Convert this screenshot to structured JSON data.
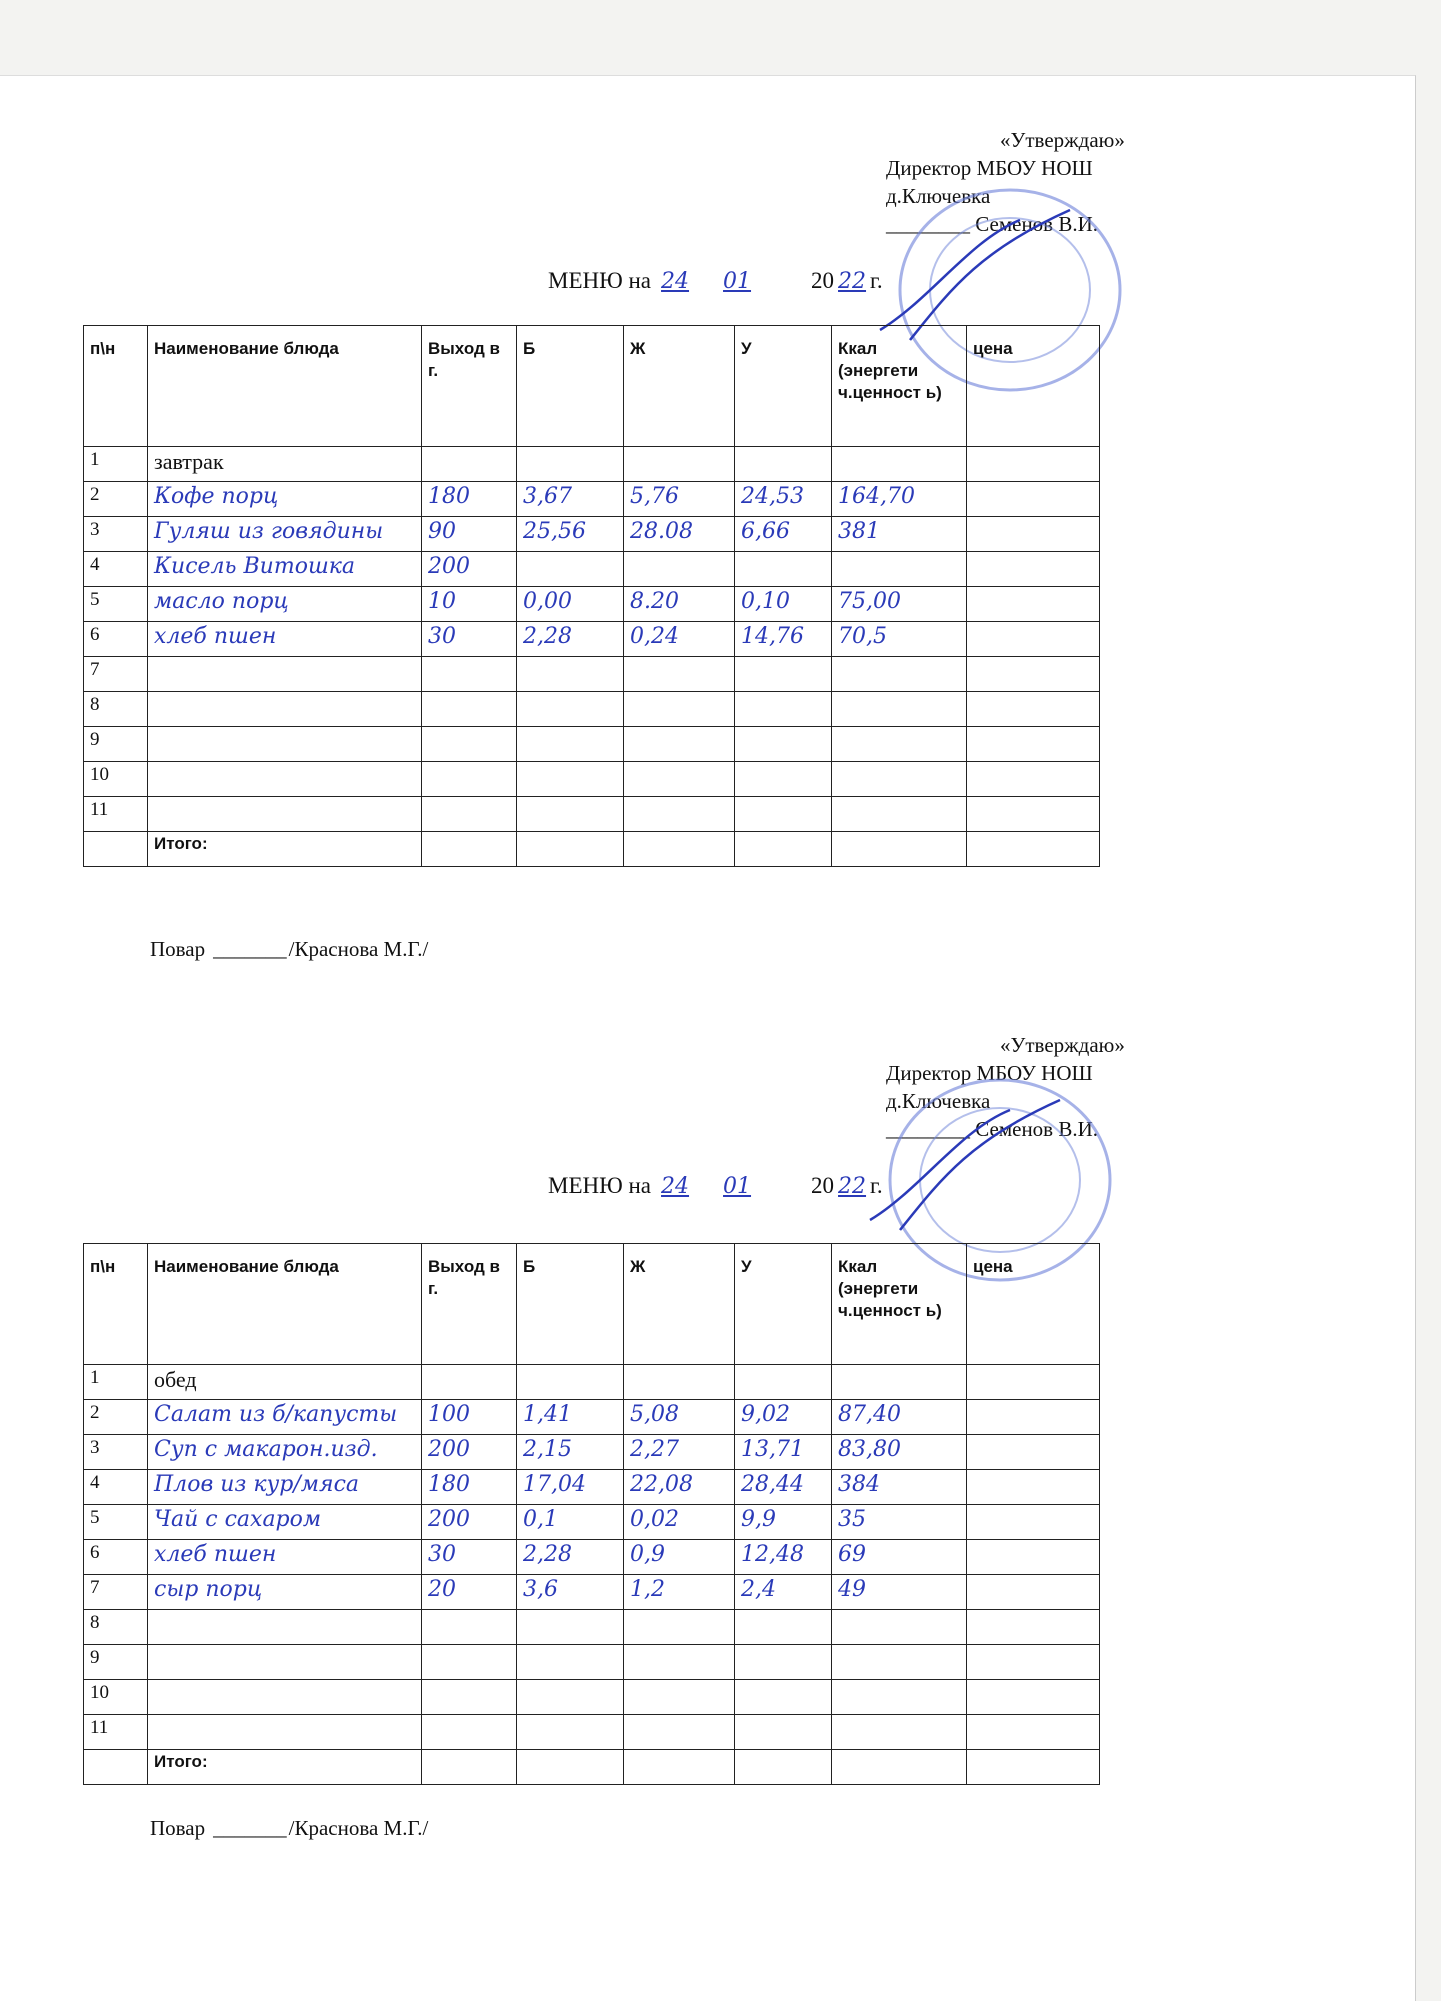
{
  "menus": [
    {
      "approval": {
        "approve": "«Утверждаю»",
        "position": "Директор МБОУ НОШ",
        "place": "д.Ключевка",
        "signature_line": "________ Семенов В.И."
      },
      "title": {
        "prefix": "МЕНЮ на",
        "day": "24",
        "month": "01",
        "year_prefix": "20",
        "year": "22",
        "suffix": "г."
      },
      "headers": [
        "п\\н",
        "Наименование блюда",
        "Выход в г.",
        "Б",
        "Ж",
        "У",
        "Ккал (энергети ч.ценност ь)",
        "цена"
      ],
      "section": "завтрак",
      "rows": [
        {
          "n": "1",
          "name": "",
          "out": "",
          "b": "",
          "zh": "",
          "u": "",
          "kcal": "",
          "price": ""
        },
        {
          "n": "2",
          "name": "Кофе порц",
          "out": "180",
          "b": "3,67",
          "zh": "5,76",
          "u": "24,53",
          "kcal": "164,70",
          "price": ""
        },
        {
          "n": "3",
          "name": "Гуляш из говядины",
          "out": "90",
          "b": "25,56",
          "zh": "28.08",
          "u": "6,66",
          "kcal": "381",
          "price": ""
        },
        {
          "n": "4",
          "name": "Кисель Витошка",
          "out": "200",
          "b": "",
          "zh": "",
          "u": "",
          "kcal": "",
          "price": ""
        },
        {
          "n": "5",
          "name": "масло порц",
          "out": "10",
          "b": "0,00",
          "zh": "8.20",
          "u": "0,10",
          "kcal": "75,00",
          "price": ""
        },
        {
          "n": "6",
          "name": "хлеб пшен",
          "out": "30",
          "b": "2,28",
          "zh": "0,24",
          "u": "14,76",
          "kcal": "70,5",
          "price": ""
        },
        {
          "n": "7",
          "name": "",
          "out": "",
          "b": "",
          "zh": "",
          "u": "",
          "kcal": "",
          "price": ""
        },
        {
          "n": "8",
          "name": "",
          "out": "",
          "b": "",
          "zh": "",
          "u": "",
          "kcal": "",
          "price": ""
        },
        {
          "n": "9",
          "name": "",
          "out": "",
          "b": "",
          "zh": "",
          "u": "",
          "kcal": "",
          "price": ""
        },
        {
          "n": "10",
          "name": "",
          "out": "",
          "b": "",
          "zh": "",
          "u": "",
          "kcal": "",
          "price": ""
        },
        {
          "n": "11",
          "name": "",
          "out": "",
          "b": "",
          "zh": "",
          "u": "",
          "kcal": "",
          "price": ""
        }
      ],
      "total_label": "Итого:",
      "cook": {
        "label": "Повар",
        "line": "_______",
        "name": "/Краснова М.Г./"
      }
    },
    {
      "approval": {
        "approve": "«Утверждаю»",
        "position": "Директор МБОУ НОШ",
        "place": "д.Ключевка",
        "signature_line": "________ Семенов В.И."
      },
      "title": {
        "prefix": "МЕНЮ на",
        "day": "24",
        "month": "01",
        "year_prefix": "20",
        "year": "22",
        "suffix": "г."
      },
      "headers": [
        "п\\н",
        "Наименование блюда",
        "Выход в г.",
        "Б",
        "Ж",
        "У",
        "Ккал (энергети ч.ценност ь)",
        "цена"
      ],
      "section": "обед",
      "rows": [
        {
          "n": "1",
          "name": "",
          "out": "",
          "b": "",
          "zh": "",
          "u": "",
          "kcal": "",
          "price": ""
        },
        {
          "n": "2",
          "name": "Салат из б/капусты",
          "out": "100",
          "b": "1,41",
          "zh": "5,08",
          "u": "9,02",
          "kcal": "87,40",
          "price": ""
        },
        {
          "n": "3",
          "name": "Суп с макарон.изд.",
          "out": "200",
          "b": "2,15",
          "zh": "2,27",
          "u": "13,71",
          "kcal": "83,80",
          "price": ""
        },
        {
          "n": "4",
          "name": "Плов из кур/мяса",
          "out": "180",
          "b": "17,04",
          "zh": "22,08",
          "u": "28,44",
          "kcal": "384",
          "price": ""
        },
        {
          "n": "5",
          "name": "Чай с сахаром",
          "out": "200",
          "b": "0,1",
          "zh": "0,02",
          "u": "9,9",
          "kcal": "35",
          "price": ""
        },
        {
          "n": "6",
          "name": "хлеб пшен",
          "out": "30",
          "b": "2,28",
          "zh": "0,9",
          "u": "12,48",
          "kcal": "69",
          "price": ""
        },
        {
          "n": "7",
          "name": "сыр порц",
          "out": "20",
          "b": "3,6",
          "zh": "1,2",
          "u": "2,4",
          "kcal": "49",
          "price": ""
        },
        {
          "n": "8",
          "name": "",
          "out": "",
          "b": "",
          "zh": "",
          "u": "",
          "kcal": "",
          "price": ""
        },
        {
          "n": "9",
          "name": "",
          "out": "",
          "b": "",
          "zh": "",
          "u": "",
          "kcal": "",
          "price": ""
        },
        {
          "n": "10",
          "name": "",
          "out": "",
          "b": "",
          "zh": "",
          "u": "",
          "kcal": "",
          "price": ""
        },
        {
          "n": "11",
          "name": "",
          "out": "",
          "b": "",
          "zh": "",
          "u": "",
          "kcal": "",
          "price": ""
        }
      ],
      "total_label": "Итого:",
      "cook": {
        "label": "Повар",
        "line": "_______",
        "name": "/Краснова М.Г./"
      }
    }
  ],
  "colors": {
    "ink": "#2a3ab8",
    "stamp": "#5a6fd0"
  }
}
